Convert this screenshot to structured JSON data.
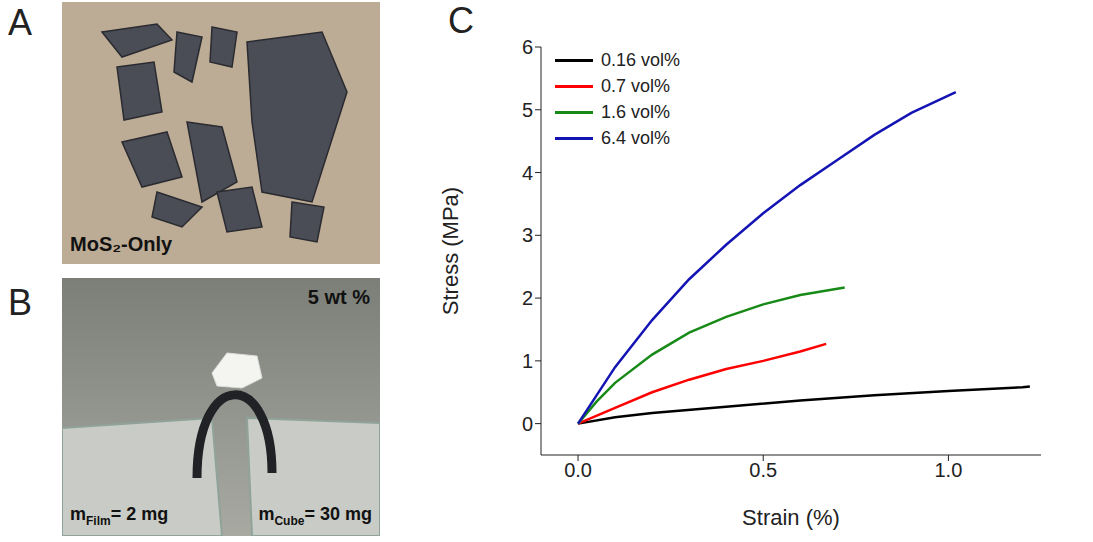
{
  "panels": [
    {
      "letter": "A",
      "caption": "MoS₂-Only"
    },
    {
      "letter": "B",
      "caption": "5 wt %",
      "masses": [
        {
          "symbol": "m",
          "subscript": "Film",
          "value": "= 2 mg"
        },
        {
          "symbol": "m",
          "subscript": "Cube",
          "value": "= 30 mg"
        }
      ]
    }
  ],
  "chart_data": {
    "panel": "C",
    "type": "line",
    "x_label": "Strain (%)",
    "y_label": "Stress (MPa)",
    "xlim": [
      -0.1,
      1.25
    ],
    "xticks": [
      {
        "value": 0,
        "label": "0.0"
      },
      {
        "value": 0.5,
        "label": "0.5"
      },
      {
        "value": 1,
        "label": "1.0"
      }
    ],
    "ylim": [
      -0.5,
      6
    ],
    "yticks": [
      0,
      1,
      2,
      3,
      4,
      5,
      6
    ],
    "grid": false,
    "legend": "upper left",
    "series": [
      {
        "name": "0.16 vol%",
        "color": "#000000",
        "x": [
          0,
          0.1,
          0.2,
          0.4,
          0.6,
          0.8,
          1.0,
          1.2,
          1.22
        ],
        "values": [
          0,
          0.1,
          0.17,
          0.27,
          0.37,
          0.45,
          0.52,
          0.58,
          0.59
        ]
      },
      {
        "name": "0.7 vol%",
        "color": "#ff0000",
        "x": [
          0,
          0.1,
          0.2,
          0.3,
          0.4,
          0.5,
          0.6,
          0.67
        ],
        "values": [
          0,
          0.25,
          0.5,
          0.7,
          0.87,
          1.0,
          1.15,
          1.27
        ]
      },
      {
        "name": "1.6 vol%",
        "color": "#178a17",
        "x": [
          0,
          0.05,
          0.1,
          0.2,
          0.3,
          0.4,
          0.5,
          0.6,
          0.7,
          0.72
        ],
        "values": [
          0,
          0.35,
          0.65,
          1.1,
          1.45,
          1.7,
          1.9,
          2.05,
          2.15,
          2.17
        ]
      },
      {
        "name": "6.4 vol%",
        "color": "#1414b4",
        "x": [
          0,
          0.05,
          0.1,
          0.2,
          0.3,
          0.4,
          0.5,
          0.6,
          0.7,
          0.8,
          0.9,
          1.02
        ],
        "values": [
          0,
          0.45,
          0.9,
          1.65,
          2.3,
          2.85,
          3.35,
          3.8,
          4.2,
          4.6,
          4.95,
          5.28
        ]
      }
    ]
  }
}
